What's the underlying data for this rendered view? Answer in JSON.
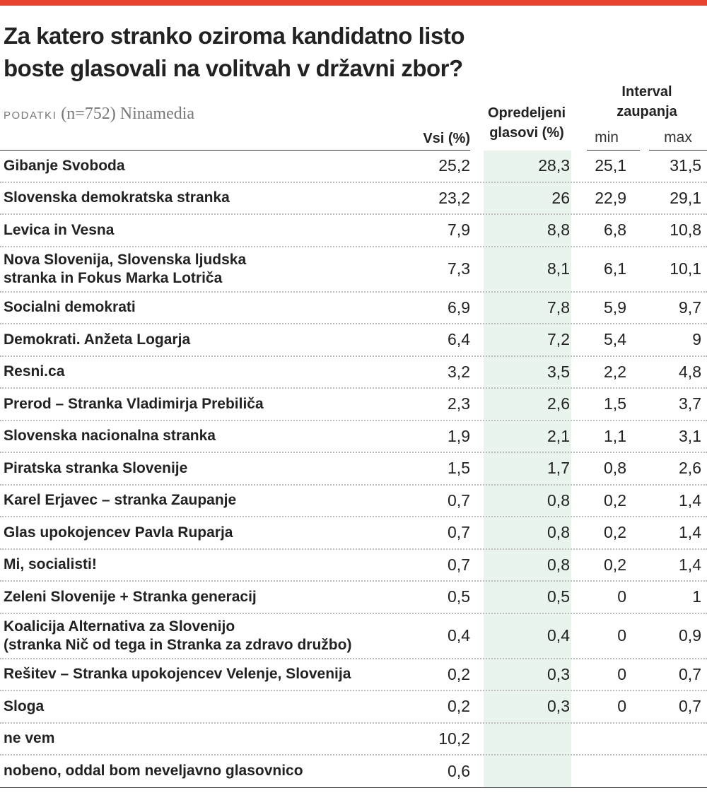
{
  "header": {
    "title": "Za katero stranko oziroma kandidatno listo\nboste glasovali na volitvah v državni zbor?",
    "source_label": "PODATKI",
    "source_text": "(n=752) Ninamedia"
  },
  "table": {
    "columns": {
      "all": "Vsi (%)",
      "decided": "Opredeljeni\nglasovi (%)",
      "interval": "Interval\nzaupanja",
      "min": "min",
      "max": "max"
    },
    "rows": [
      [
        "Gibanje Svoboda",
        "25,2",
        "28,3",
        "25,1",
        "31,5"
      ],
      [
        "Slovenska demokratska stranka",
        "23,2",
        "26",
        "22,9",
        "29,1"
      ],
      [
        "Levica in Vesna",
        "7,9",
        "8,8",
        "6,8",
        "10,8"
      ],
      [
        "Nova Slovenija, Slovenska ljudska\nstranka in Fokus Marka Lotriča",
        "7,3",
        "8,1",
        "6,1",
        "10,1"
      ],
      [
        "Socialni demokrati",
        "6,9",
        "7,8",
        "5,9",
        "9,7"
      ],
      [
        "Demokrati. Anžeta Logarja",
        "6,4",
        "7,2",
        "5,4",
        "9"
      ],
      [
        "Resni.ca",
        "3,2",
        "3,5",
        "2,2",
        "4,8"
      ],
      [
        "Prerod – Stranka Vladimirja Prebiliča",
        "2,3",
        "2,6",
        "1,5",
        "3,7"
      ],
      [
        "Slovenska nacionalna stranka",
        "1,9",
        "2,1",
        "1,1",
        "3,1"
      ],
      [
        "Piratska stranka Slovenije",
        "1,5",
        "1,7",
        "0,8",
        "2,6"
      ],
      [
        "Karel Erjavec – stranka Zaupanje",
        "0,7",
        "0,8",
        "0,2",
        "1,4"
      ],
      [
        "Glas upokojencev Pavla Ruparja",
        "0,7",
        "0,8",
        "0,2",
        "1,4"
      ],
      [
        "Mi, socialisti!",
        "0,7",
        "0,8",
        "0,2",
        "1,4"
      ],
      [
        "Zeleni Slovenije + Stranka generacij",
        "0,5",
        "0,5",
        "0",
        "1"
      ],
      [
        "Koalicija Alternativa za Slovenijo\n(stranka Nič od tega in Stranka za zdravo družbo)",
        "0,4",
        "0,4",
        "0",
        "0,9"
      ],
      [
        "Rešitev – Stranka upokojencev Velenje, Slovenija",
        "0,2",
        "0,3",
        "0",
        "0,7"
      ],
      [
        "Sloga",
        "0,2",
        "0,3",
        "0",
        "0,7"
      ],
      [
        "ne vem",
        "10,2",
        null,
        null,
        null
      ],
      [
        "nobeno, oddal bom neveljavno glasovnico",
        "0,6",
        null,
        null,
        null
      ]
    ]
  }
}
